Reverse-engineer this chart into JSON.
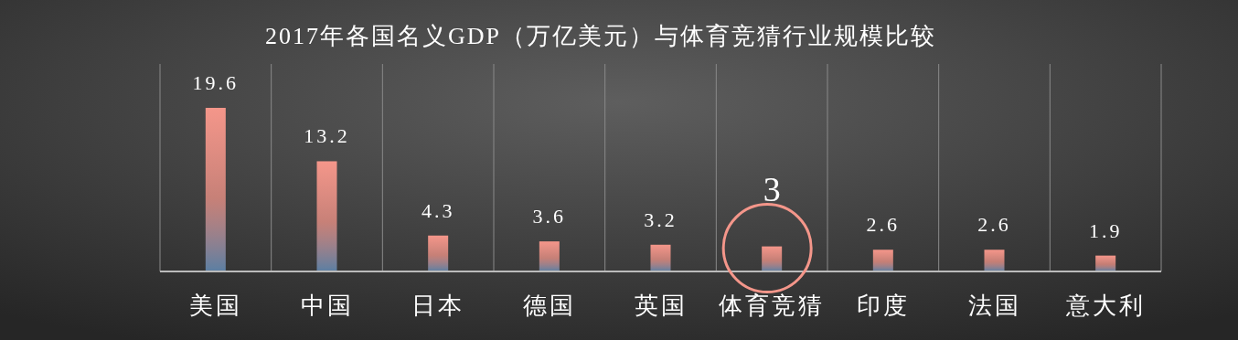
{
  "chart_data": {
    "type": "bar",
    "title": "2017年各国名义GDP（万亿美元）与体育竞猜行业规模比较",
    "categories": [
      "美国",
      "中国",
      "日本",
      "德国",
      "英国",
      "体育竞猜",
      "印度",
      "法国",
      "意大利"
    ],
    "values": [
      19.6,
      13.2,
      4.3,
      3.6,
      3.2,
      3,
      2.6,
      2.6,
      1.9
    ],
    "value_labels": [
      "19.6",
      "13.2",
      "4.3",
      "3.6",
      "3.2",
      null,
      "2.6",
      "2.6",
      "1.9"
    ],
    "color": "#f4968a",
    "annotations": [
      {
        "text": "3",
        "x": "体育竞猜",
        "y": 3
      }
    ],
    "grid": "x"
  }
}
